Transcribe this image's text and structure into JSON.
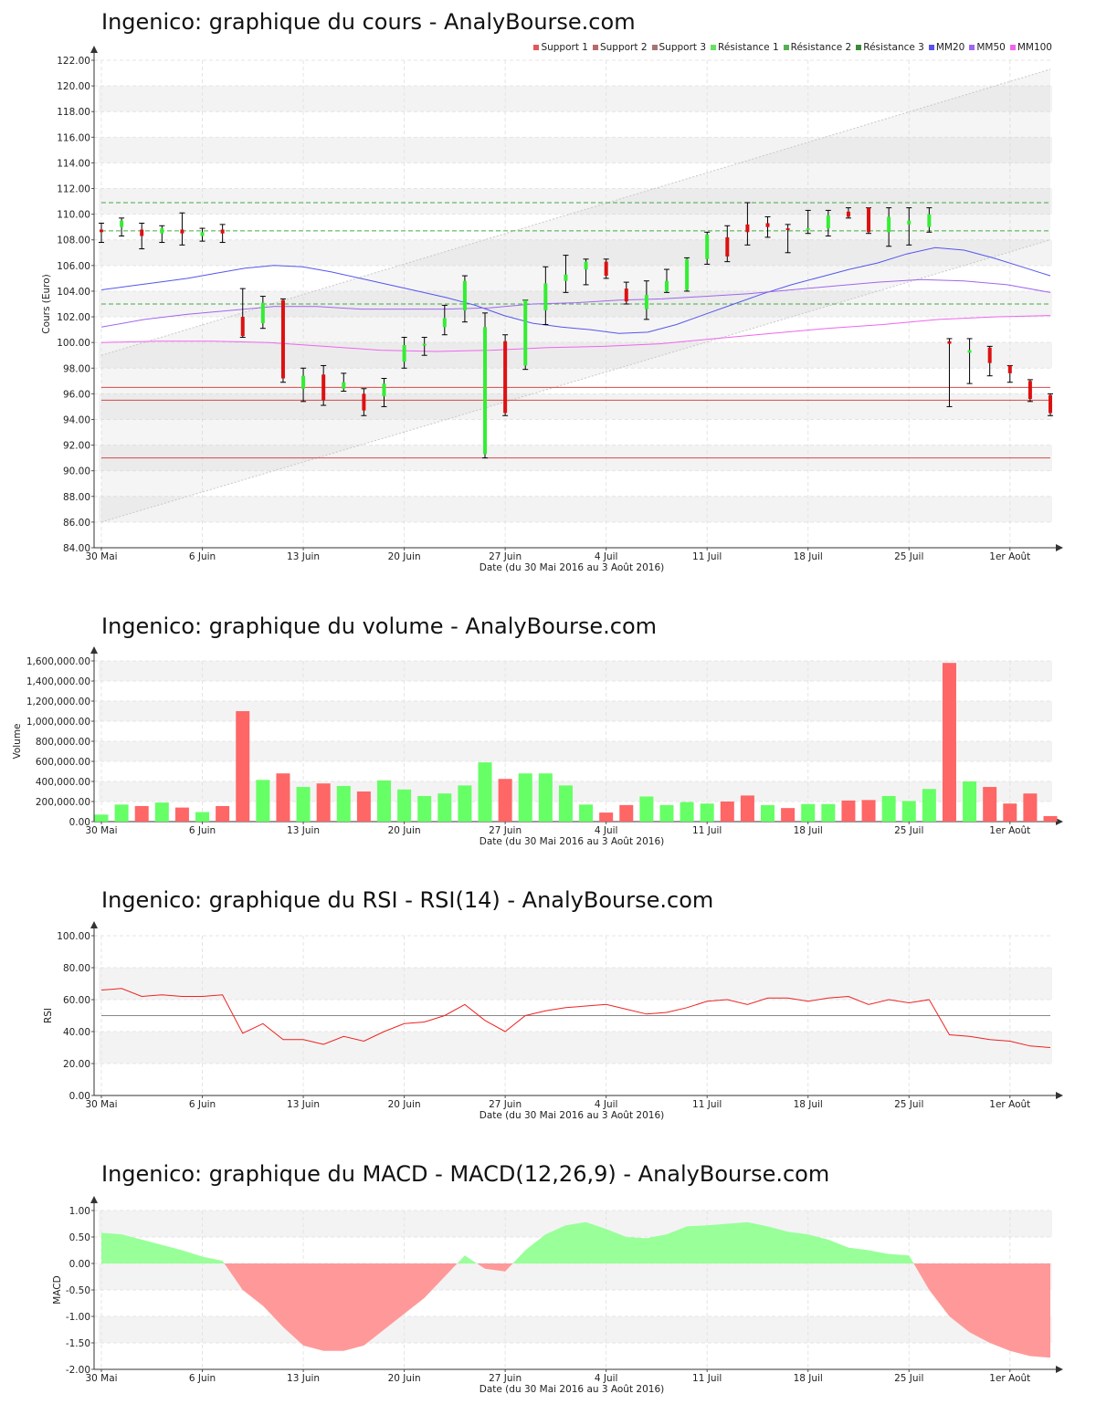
{
  "titles": {
    "price": "Ingenico: graphique du cours - AnalyBourse.com",
    "volume": "Ingenico: graphique du volume - AnalyBourse.com",
    "rsi": "Ingenico: graphique du RSI - RSI(14) - AnalyBourse.com",
    "macd": "Ingenico: graphique du MACD - MACD(12,26,9) - AnalyBourse.com"
  },
  "xlabel": "Date (du 30 Mai 2016 au 3 Août 2016)",
  "x_ticks": [
    "30 Mai",
    "6 Juin",
    "13 Juin",
    "20 Juin",
    "27 Juin",
    "4 Juil",
    "11 Juil",
    "18 Juil",
    "25 Juil",
    "1er Août"
  ],
  "legend": [
    {
      "label": "Support 1",
      "color": "#e05858"
    },
    {
      "label": "Support 2",
      "color": "#b86a6a"
    },
    {
      "label": "Support 3",
      "color": "#a87474"
    },
    {
      "label": "Résistance 1",
      "color": "#66e066"
    },
    {
      "label": "Résistance 2",
      "color": "#55b055"
    },
    {
      "label": "Résistance 3",
      "color": "#3a8a3a"
    },
    {
      "label": "MM20",
      "color": "#5555ee"
    },
    {
      "label": "MM50",
      "color": "#a066ee"
    },
    {
      "label": "MM100",
      "color": "#ee66ee"
    }
  ],
  "chart_data": [
    {
      "type": "candlestick",
      "title": "Ingenico: graphique du cours - AnalyBourse.com",
      "ylabel": "Cours (Euro)",
      "ylim": [
        84,
        122
      ],
      "yticks": [
        "84.00",
        "86.00",
        "88.00",
        "90.00",
        "92.00",
        "94.00",
        "96.00",
        "98.00",
        "100.00",
        "102.00",
        "104.00",
        "106.00",
        "108.00",
        "110.00",
        "112.00",
        "114.00",
        "116.00",
        "118.00",
        "120.00",
        "122.00"
      ],
      "x": [
        "30 Mai",
        "31 Mai",
        "1 Juin",
        "2 Juin",
        "3 Juin",
        "6 Juin",
        "7 Juin",
        "8 Juin",
        "9 Juin",
        "10 Juin",
        "13 Juin",
        "14 Juin",
        "15 Juin",
        "16 Juin",
        "17 Juin",
        "20 Juin",
        "21 Juin",
        "22 Juin",
        "23 Juin",
        "24 Juin",
        "27 Juin",
        "28 Juin",
        "29 Juin",
        "30 Juin",
        "1 Juil",
        "4 Juil",
        "5 Juil",
        "6 Juil",
        "7 Juil",
        "8 Juil",
        "11 Juil",
        "12 Juil",
        "13 Juil",
        "14 Juil",
        "15 Juil",
        "18 Juil",
        "19 Juil",
        "20 Juil",
        "21 Juil",
        "22 Juil",
        "25 Juil",
        "26 Juil",
        "27 Juil",
        "28 Juil",
        "29 Juil",
        "1 Août",
        "2 Août",
        "3 Août"
      ],
      "open": [
        108.8,
        109.0,
        108.8,
        108.5,
        108.8,
        108.3,
        108.8,
        102.0,
        101.5,
        103.3,
        96.4,
        97.5,
        96.4,
        96.0,
        95.8,
        98.5,
        99.8,
        101.2,
        102.5,
        91.3,
        100.1,
        98.2,
        102.5,
        104.8,
        105.7,
        106.3,
        104.2,
        102.6,
        104.0,
        104.1,
        106.5,
        108.2,
        109.2,
        109.3,
        108.9,
        108.8,
        108.9,
        110.2,
        110.5,
        108.6,
        109.2,
        109.0,
        100.1,
        99.2,
        99.6,
        98.2,
        97.0,
        95.9
      ],
      "high": [
        109.3,
        109.7,
        109.3,
        109.1,
        110.1,
        108.9,
        109.2,
        104.2,
        103.6,
        103.4,
        98.0,
        98.2,
        97.6,
        96.4,
        97.2,
        100.4,
        100.4,
        102.9,
        105.2,
        102.3,
        100.6,
        103.3,
        105.9,
        106.8,
        106.5,
        106.5,
        104.7,
        104.8,
        105.7,
        106.6,
        108.6,
        109.1,
        110.9,
        109.8,
        109.2,
        110.3,
        110.3,
        110.5,
        110.5,
        110.5,
        110.5,
        110.5,
        100.3,
        100.3,
        99.7,
        98.2,
        97.1,
        96.0
      ],
      "low": [
        107.8,
        108.3,
        107.3,
        107.8,
        107.6,
        107.9,
        107.8,
        100.4,
        101.1,
        96.9,
        95.4,
        95.1,
        96.2,
        94.3,
        95.0,
        98.0,
        99.0,
        100.6,
        101.6,
        91.0,
        94.3,
        97.9,
        101.4,
        103.9,
        104.5,
        105.0,
        103.0,
        101.8,
        103.9,
        104.0,
        106.1,
        106.3,
        107.6,
        108.2,
        107.0,
        108.5,
        108.3,
        109.7,
        108.5,
        107.5,
        107.6,
        108.6,
        95.0,
        96.8,
        97.4,
        96.9,
        95.4,
        94.3
      ],
      "close": [
        108.6,
        109.5,
        108.3,
        108.9,
        108.5,
        108.6,
        108.5,
        100.5,
        103.1,
        97.2,
        97.4,
        95.5,
        96.9,
        94.7,
        96.8,
        99.8,
        99.9,
        101.9,
        104.8,
        101.2,
        94.5,
        103.3,
        104.6,
        105.3,
        106.3,
        105.2,
        103.2,
        103.7,
        104.8,
        106.5,
        108.4,
        106.7,
        108.6,
        109.0,
        108.8,
        108.9,
        109.9,
        109.8,
        108.6,
        109.8,
        109.5,
        110.0,
        99.9,
        99.4,
        98.4,
        97.6,
        95.6,
        94.5
      ],
      "mm20": [
        104.1,
        104.4,
        104.7,
        105.0,
        105.4,
        105.8,
        106.0,
        105.9,
        105.5,
        105.0,
        104.5,
        104.0,
        103.5,
        102.9,
        102.1,
        101.5,
        101.2,
        101.0,
        100.7,
        100.8,
        101.4,
        102.2,
        103.0,
        103.8,
        104.5,
        105.1,
        105.7,
        106.2,
        106.9,
        107.4,
        107.2,
        106.6,
        105.9,
        105.2
      ],
      "mm50": [
        101.2,
        101.8,
        102.2,
        102.5,
        102.8,
        102.8,
        102.6,
        102.6,
        102.6,
        102.7,
        103.0,
        103.1,
        103.3,
        103.4,
        103.6,
        103.8,
        104.1,
        104.4,
        104.7,
        104.9,
        104.8,
        104.5,
        103.9
      ],
      "mm100": [
        100.0,
        100.1,
        100.1,
        100.0,
        99.7,
        99.4,
        99.3,
        99.4,
        99.6,
        99.7,
        99.9,
        100.3,
        100.7,
        101.1,
        101.4,
        101.8,
        102.0,
        102.1
      ],
      "support_lines": [
        96.5,
        95.5,
        91.0
      ],
      "resistance_lines": [
        110.9,
        108.7,
        103.0
      ],
      "channel": {
        "lower": [
          86.0,
          108.0
        ],
        "upper": [
          99.0,
          121.3
        ]
      }
    },
    {
      "type": "bar",
      "title": "Ingenico: graphique du volume - AnalyBourse.com",
      "ylabel": "Volume",
      "ylim": [
        0,
        1600000
      ],
      "yticks": [
        "0.00",
        "200,000.00",
        "400,000.00",
        "600,000.00",
        "800,000.00",
        "1,000,000.00",
        "1,200,000.00",
        "1,400,000.00",
        "1,600,000.00"
      ],
      "values": [
        70000,
        170000,
        155000,
        190000,
        140000,
        95000,
        155000,
        1100000,
        415000,
        480000,
        345000,
        380000,
        355000,
        300000,
        410000,
        320000,
        255000,
        280000,
        360000,
        590000,
        425000,
        480000,
        480000,
        360000,
        170000,
        90000,
        165000,
        250000,
        165000,
        195000,
        180000,
        200000,
        260000,
        165000,
        135000,
        175000,
        175000,
        210000,
        215000,
        255000,
        205000,
        325000,
        1580000,
        400000,
        345000,
        180000,
        280000,
        55000
      ],
      "up": [
        1,
        1,
        0,
        1,
        0,
        1,
        0,
        0,
        1,
        0,
        1,
        0,
        1,
        0,
        1,
        1,
        1,
        1,
        1,
        1,
        0,
        1,
        1,
        1,
        1,
        0,
        0,
        1,
        1,
        1,
        1,
        0,
        0,
        1,
        0,
        1,
        1,
        0,
        0,
        1,
        1,
        1,
        0,
        1,
        0,
        0,
        0,
        0
      ]
    },
    {
      "type": "line",
      "title": "Ingenico: graphique du RSI - RSI(14) - AnalyBourse.com",
      "ylabel": "RSI",
      "ylim": [
        0,
        100
      ],
      "yticks": [
        "0.00",
        "20.00",
        "40.00",
        "60.00",
        "80.00",
        "100.00"
      ],
      "values": [
        66,
        67,
        62,
        63,
        62,
        62,
        63,
        39,
        45,
        35,
        35,
        32,
        37,
        34,
        40,
        45,
        46,
        50,
        57,
        47,
        40,
        50,
        53,
        55,
        56,
        57,
        54,
        51,
        52,
        55,
        59,
        60,
        57,
        61,
        61,
        59,
        61,
        62,
        57,
        60,
        58,
        60,
        38,
        37,
        35,
        34,
        31,
        30
      ],
      "reference": 50
    },
    {
      "type": "area",
      "title": "Ingenico: graphique du MACD - MACD(12,26,9) - AnalyBourse.com",
      "ylabel": "MACD",
      "ylim": [
        -2.0,
        1.0
      ],
      "yticks": [
        "-2.00",
        "-1.50",
        "-1.00",
        "-0.50",
        "0.00",
        "0.50",
        "1.00"
      ],
      "values": [
        0.58,
        0.55,
        0.45,
        0.35,
        0.25,
        0.13,
        0.05,
        -0.5,
        -0.8,
        -1.2,
        -1.55,
        -1.65,
        -1.65,
        -1.55,
        -1.25,
        -0.95,
        -0.65,
        -0.25,
        0.15,
        -0.1,
        -0.15,
        0.25,
        0.55,
        0.72,
        0.78,
        0.65,
        0.5,
        0.48,
        0.55,
        0.7,
        0.72,
        0.75,
        0.78,
        0.7,
        0.6,
        0.55,
        0.45,
        0.3,
        0.25,
        0.18,
        0.15,
        -0.5,
        -1.0,
        -1.3,
        -1.5,
        -1.65,
        -1.75,
        -1.78
      ]
    }
  ]
}
